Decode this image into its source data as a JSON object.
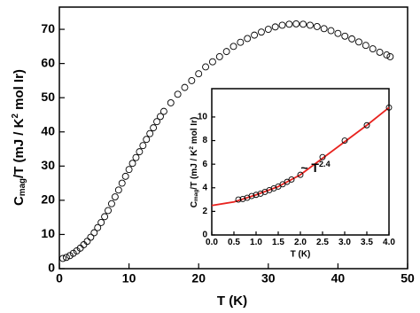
{
  "chart_data": [
    {
      "type": "scatter",
      "xlabel": "T (K)",
      "ylabel": [
        "C",
        "mag",
        "/T (mJ / K",
        "2",
        " mol Ir)"
      ],
      "xlim": [
        0,
        50
      ],
      "xticks": [
        0,
        10,
        20,
        30,
        40,
        50
      ],
      "ylim": [
        0,
        76.5
      ],
      "yticks": [
        0,
        10,
        20,
        30,
        40,
        50,
        60,
        70
      ],
      "series": [
        {
          "mode": "markers",
          "color": "#000000",
          "x": [
            0.5,
            1,
            1.5,
            2,
            2.5,
            3,
            3.5,
            4,
            4.5,
            5,
            5.5,
            6,
            6.5,
            7,
            7.5,
            8,
            8.5,
            9,
            9.5,
            10,
            10.5,
            11,
            11.5,
            12,
            12.5,
            13,
            13.5,
            14,
            14.5,
            15,
            16,
            17,
            18,
            19,
            20,
            21,
            22,
            23,
            24,
            25,
            26,
            27,
            28,
            29,
            30,
            31,
            32,
            33,
            34,
            35,
            36,
            37,
            38,
            39,
            40,
            41,
            42,
            43,
            44,
            45,
            46,
            47,
            47.5
          ],
          "values": [
            3,
            3.3,
            3.8,
            4.5,
            5.2,
            6,
            7,
            8,
            9.2,
            10.5,
            12,
            13.5,
            15.2,
            17,
            19,
            21,
            23,
            25,
            27,
            29,
            30.8,
            32.5,
            34.2,
            36,
            37.8,
            39.5,
            41.2,
            43,
            44.5,
            46,
            48.5,
            51,
            53,
            55,
            57,
            59,
            60.5,
            62,
            63.5,
            65,
            66.2,
            67.3,
            68.3,
            69.2,
            70,
            70.7,
            71.2,
            71.5,
            71.6,
            71.5,
            71.2,
            70.8,
            70.2,
            69.6,
            68.8,
            68,
            67.2,
            66.3,
            65.3,
            64.3,
            63.3,
            62.5,
            62
          ]
        }
      ]
    },
    {
      "type": "scatter",
      "xlabel": "T (K)",
      "ylabel": [
        "C",
        "mag",
        "/T (mJ / K",
        "2",
        " mol Ir)"
      ],
      "annotation": [
        "~ T",
        "2.4"
      ],
      "xlim": [
        0,
        4
      ],
      "xticks": [
        {
          "value": 0,
          "label": "0.0"
        },
        0.5,
        {
          "value": 1,
          "label": "1.0"
        },
        1.5,
        {
          "value": 2,
          "label": "2.0"
        },
        2.5,
        {
          "value": 3,
          "label": "3.0"
        },
        3.5,
        {
          "value": 4,
          "label": "4.0"
        }
      ],
      "ylim": [
        0,
        12.4
      ],
      "yticks": [
        0,
        2,
        4,
        6,
        8,
        10
      ],
      "series": [
        {
          "mode": "line",
          "color": "#e8231f",
          "x": [
            0,
            0.5,
            1,
            1.5,
            2,
            2.5,
            3,
            3.5,
            4
          ],
          "values": [
            2.5,
            2.8,
            3.4,
            4.1,
            5.1,
            6.5,
            7.9,
            9.3,
            10.8
          ]
        },
        {
          "mode": "markers",
          "color": "#000000",
          "x": [
            0.6,
            0.7,
            0.8,
            0.9,
            1.0,
            1.1,
            1.2,
            1.3,
            1.4,
            1.5,
            1.6,
            1.7,
            1.8,
            2.0,
            2.5,
            3.0,
            3.5,
            4.0
          ],
          "values": [
            3.0,
            3.05,
            3.15,
            3.3,
            3.4,
            3.5,
            3.65,
            3.8,
            3.95,
            4.1,
            4.3,
            4.5,
            4.7,
            5.1,
            6.6,
            8.0,
            9.3,
            10.8
          ]
        }
      ]
    }
  ]
}
